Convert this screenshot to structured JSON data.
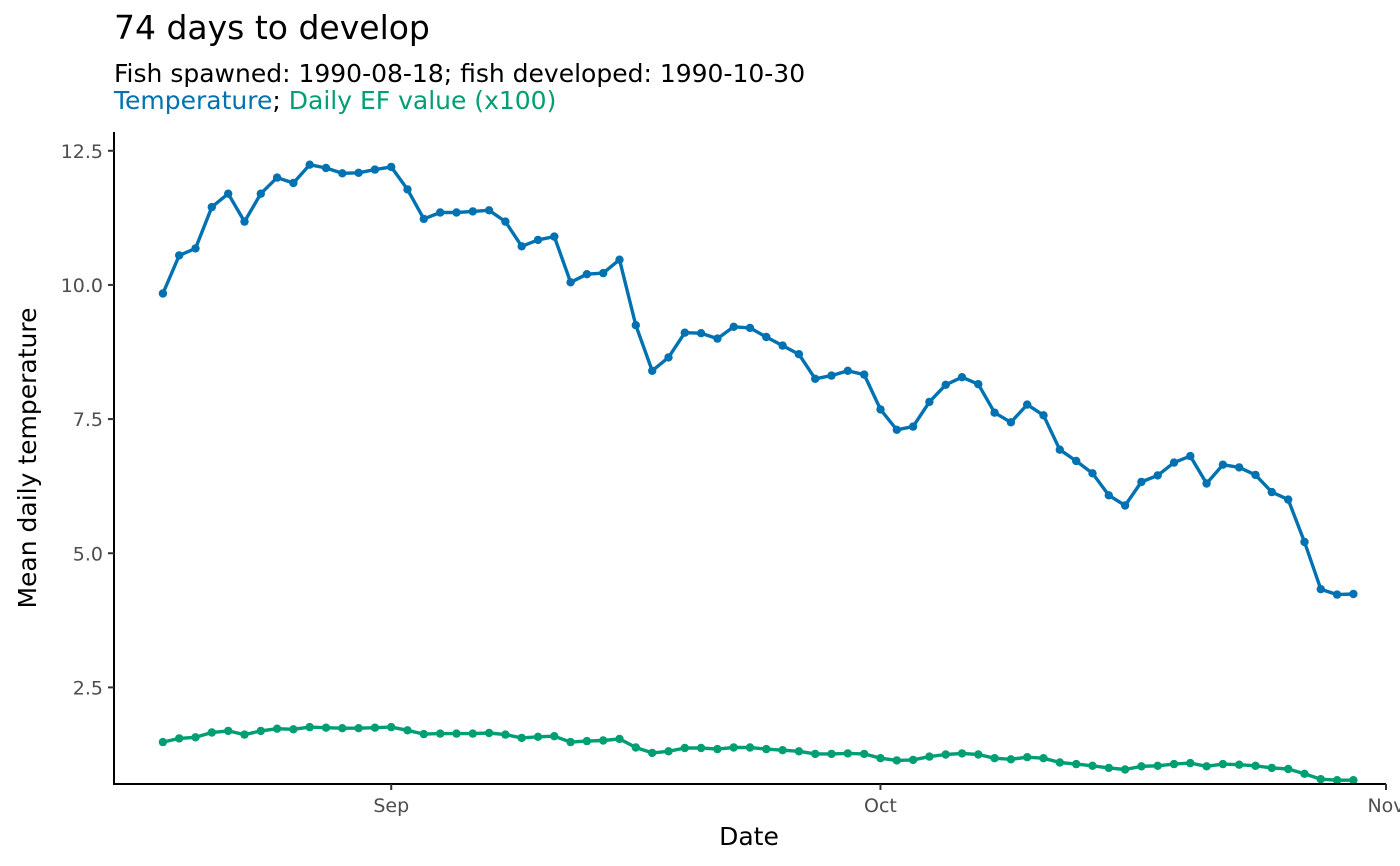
{
  "title": "74 days to develop",
  "subtitle": "Fish spawned: 1990-08-18; fish developed: 1990-10-30",
  "legend_text": {
    "temperature": "Temperature",
    "separator": "; ",
    "ef": "Daily EF value (x100)"
  },
  "colors": {
    "temperature": "#0072b2",
    "ef": "#009e73",
    "axis": "#000000",
    "tick_text": "#4d4d4d"
  },
  "chart_data": {
    "type": "line",
    "xlabel": "Date",
    "ylabel": "Mean daily temperature",
    "xlim": [
      "1990-08-15",
      "1990-11-01"
    ],
    "ylim": [
      0.7,
      12.85
    ],
    "grid": false,
    "legend": "none",
    "x_ticks": [
      {
        "date": "1990-09-01",
        "label": "Sep"
      },
      {
        "date": "1990-10-01",
        "label": "Oct"
      },
      {
        "date": "1990-11-01",
        "label": "Nov"
      }
    ],
    "y_ticks": [
      {
        "value": 2.5,
        "label": "2.5"
      },
      {
        "value": 5.0,
        "label": "5.0"
      },
      {
        "value": 7.5,
        "label": "7.5"
      },
      {
        "value": 10.0,
        "label": "10.0"
      },
      {
        "value": 12.5,
        "label": "12.5"
      }
    ],
    "start_date": "1990-08-18",
    "series": [
      {
        "name": "Temperature",
        "color": "#0072b2",
        "marker": "point",
        "values": [
          9.84,
          10.55,
          10.68,
          11.45,
          11.7,
          11.18,
          11.7,
          12.0,
          11.9,
          12.24,
          12.18,
          12.08,
          12.09,
          12.15,
          12.2,
          11.78,
          11.23,
          11.35,
          11.35,
          11.37,
          11.39,
          11.18,
          10.72,
          10.84,
          10.9,
          10.05,
          10.2,
          10.22,
          10.47,
          9.25,
          8.4,
          8.65,
          9.11,
          9.1,
          9.0,
          9.22,
          9.2,
          9.03,
          8.87,
          8.71,
          8.25,
          8.31,
          8.4,
          8.33,
          7.68,
          7.3,
          7.36,
          7.82,
          8.14,
          8.28,
          8.15,
          7.62,
          7.44,
          7.77,
          7.57,
          6.93,
          6.72,
          6.49,
          6.08,
          5.89,
          6.33,
          6.45,
          6.69,
          6.81,
          6.3,
          6.65,
          6.6,
          6.46,
          6.14,
          6.0,
          5.21,
          4.33,
          4.23,
          4.24
        ]
      },
      {
        "name": "Daily EF value (x100)",
        "color": "#009e73",
        "marker": "point",
        "values": [
          1.48,
          1.55,
          1.57,
          1.66,
          1.69,
          1.62,
          1.69,
          1.73,
          1.72,
          1.76,
          1.75,
          1.74,
          1.74,
          1.75,
          1.76,
          1.7,
          1.63,
          1.64,
          1.64,
          1.64,
          1.65,
          1.62,
          1.56,
          1.58,
          1.59,
          1.48,
          1.5,
          1.51,
          1.54,
          1.38,
          1.28,
          1.31,
          1.37,
          1.37,
          1.35,
          1.38,
          1.38,
          1.35,
          1.33,
          1.31,
          1.26,
          1.26,
          1.27,
          1.26,
          1.18,
          1.14,
          1.15,
          1.21,
          1.25,
          1.27,
          1.25,
          1.18,
          1.16,
          1.2,
          1.18,
          1.1,
          1.07,
          1.04,
          1.0,
          0.97,
          1.03,
          1.04,
          1.07,
          1.09,
          1.03,
          1.07,
          1.06,
          1.04,
          1.0,
          0.98,
          0.89,
          0.79,
          0.77,
          0.77
        ]
      }
    ]
  }
}
